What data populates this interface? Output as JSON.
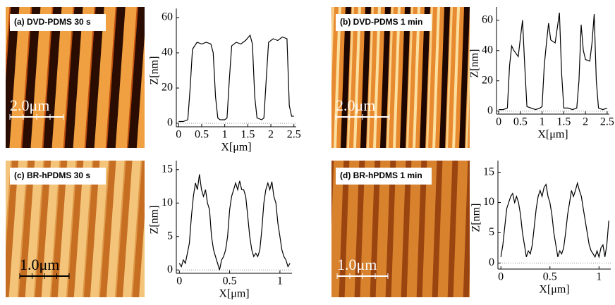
{
  "chart_data": [
    {
      "type": "line",
      "image_label": "(a) DVD-PDMS 30 s",
      "scale_bar": "2.0μm",
      "xlabel": "X[μm]",
      "ylabel": "Z[nm]",
      "color": "#000000",
      "x": [
        0,
        0.1,
        0.2,
        0.25,
        0.3,
        0.4,
        0.5,
        0.6,
        0.7,
        0.75,
        0.8,
        0.85,
        0.9,
        1.0,
        1.05,
        1.1,
        1.15,
        1.25,
        1.35,
        1.45,
        1.55,
        1.6,
        1.65,
        1.7,
        1.8,
        1.85,
        1.9,
        1.95,
        2.05,
        2.15,
        2.25,
        2.35,
        2.4,
        2.45,
        2.5
      ],
      "values": [
        1,
        1,
        2,
        20,
        42,
        46,
        45,
        46,
        45,
        40,
        15,
        3,
        2,
        2,
        3,
        25,
        44,
        46,
        45,
        47,
        50,
        45,
        15,
        3,
        2,
        3,
        25,
        46,
        48,
        47,
        49,
        48,
        10,
        4,
        4
      ],
      "xlim": [
        -0.05,
        2.55
      ],
      "ylim": [
        -2,
        62
      ],
      "xticks": [
        0,
        0.5,
        1,
        1.5,
        2,
        2.5
      ],
      "yticks": [
        0,
        20,
        40,
        60
      ]
    },
    {
      "type": "line",
      "image_label": "(b) DVD-PDMS 1 min",
      "scale_bar": "2.0μm",
      "xlabel": "X[μm]",
      "ylabel": "Z[nm]",
      "color": "#000000",
      "x": [
        0,
        0.1,
        0.2,
        0.25,
        0.3,
        0.35,
        0.45,
        0.5,
        0.55,
        0.6,
        0.65,
        0.75,
        0.85,
        0.95,
        1.0,
        1.05,
        1.1,
        1.15,
        1.2,
        1.3,
        1.35,
        1.4,
        1.45,
        1.5,
        1.6,
        1.7,
        1.8,
        1.85,
        1.9,
        1.95,
        2.0,
        2.1,
        2.15,
        2.2,
        2.25,
        2.3,
        2.4,
        2.5
      ],
      "values": [
        1,
        1,
        2,
        30,
        43,
        40,
        36,
        48,
        60,
        30,
        3,
        2,
        1,
        2,
        3,
        30,
        45,
        58,
        47,
        45,
        55,
        65,
        25,
        2,
        2,
        1,
        2,
        20,
        57,
        40,
        34,
        33,
        45,
        64,
        20,
        2,
        1,
        2
      ],
      "xlim": [
        -0.05,
        2.55
      ],
      "ylim": [
        -2,
        65
      ],
      "xticks": [
        0,
        0.5,
        1,
        1.5,
        2,
        2.5
      ],
      "yticks": [
        0,
        20,
        40,
        60
      ]
    },
    {
      "type": "line",
      "image_label": "(c) BR-hPDMS 30 s",
      "scale_bar": "1.0μm",
      "xlabel": "X[μm]",
      "ylabel": "Z[nm]",
      "color": "#000000",
      "x": [
        0,
        0.02,
        0.04,
        0.06,
        0.08,
        0.1,
        0.12,
        0.14,
        0.16,
        0.18,
        0.2,
        0.22,
        0.24,
        0.26,
        0.28,
        0.3,
        0.32,
        0.34,
        0.36,
        0.38,
        0.4,
        0.42,
        0.44,
        0.46,
        0.48,
        0.5,
        0.52,
        0.54,
        0.56,
        0.58,
        0.6,
        0.62,
        0.64,
        0.66,
        0.68,
        0.7,
        0.72,
        0.74,
        0.76,
        0.78,
        0.8,
        0.82,
        0.84,
        0.86,
        0.88,
        0.9,
        0.92,
        0.94,
        0.96,
        0.98,
        1.0,
        1.02,
        1.04,
        1.06,
        1.08,
        1.1
      ],
      "values": [
        1,
        0.5,
        1.5,
        1,
        2.5,
        4,
        8,
        11,
        13,
        12,
        14.3,
        12,
        11,
        12,
        10,
        9,
        5,
        3,
        2,
        1,
        0,
        1.5,
        2,
        3,
        5,
        9,
        11,
        12,
        13,
        12,
        13.3,
        12,
        12,
        11,
        8,
        5,
        3,
        2,
        2.5,
        2,
        3,
        6,
        10,
        12,
        13,
        12,
        13.2,
        11,
        10,
        7,
        5,
        3,
        2,
        1.5,
        0.5,
        1
      ],
      "xlim": [
        -0.03,
        1.12
      ],
      "ylim": [
        -0.5,
        15.5
      ],
      "xticks": [
        0,
        0.5,
        1
      ],
      "yticks": [
        0,
        5,
        10,
        15
      ]
    },
    {
      "type": "line",
      "image_label": "(d) BR-hPDMS 1 min",
      "scale_bar": "1.0μm",
      "xlabel": "X[μm]",
      "ylabel": "Z[nm]",
      "color": "#000000",
      "x": [
        0,
        0.02,
        0.04,
        0.06,
        0.08,
        0.1,
        0.12,
        0.14,
        0.16,
        0.18,
        0.2,
        0.22,
        0.24,
        0.26,
        0.28,
        0.3,
        0.32,
        0.34,
        0.36,
        0.38,
        0.4,
        0.42,
        0.44,
        0.46,
        0.48,
        0.5,
        0.52,
        0.54,
        0.56,
        0.58,
        0.6,
        0.62,
        0.64,
        0.66,
        0.68,
        0.7,
        0.72,
        0.74,
        0.76,
        0.78,
        0.8,
        0.82,
        0.84,
        0.86,
        0.88,
        0.9,
        0.92,
        0.94,
        0.96,
        0.98,
        1.0,
        1.02,
        1.04,
        1.06,
        1.08,
        1.1
      ],
      "values": [
        1,
        3,
        6,
        9,
        10,
        11,
        11.5,
        10,
        11,
        10,
        8,
        5,
        3,
        1,
        2,
        1.5,
        3,
        6,
        9,
        11,
        12,
        11,
        12.5,
        13,
        11,
        10,
        8,
        5,
        3,
        1,
        2,
        1.5,
        2.5,
        5,
        8,
        10,
        12,
        11,
        12,
        13.2,
        12,
        11,
        9,
        7,
        5,
        3,
        2,
        1.5,
        1,
        2,
        1,
        2.5,
        3,
        1,
        3,
        7
      ],
      "xlim": [
        -0.03,
        1.12
      ],
      "ylim": [
        -1,
        16
      ],
      "xticks": [
        0,
        0.5,
        1
      ],
      "yticks": [
        0,
        5,
        10,
        15
      ]
    }
  ]
}
